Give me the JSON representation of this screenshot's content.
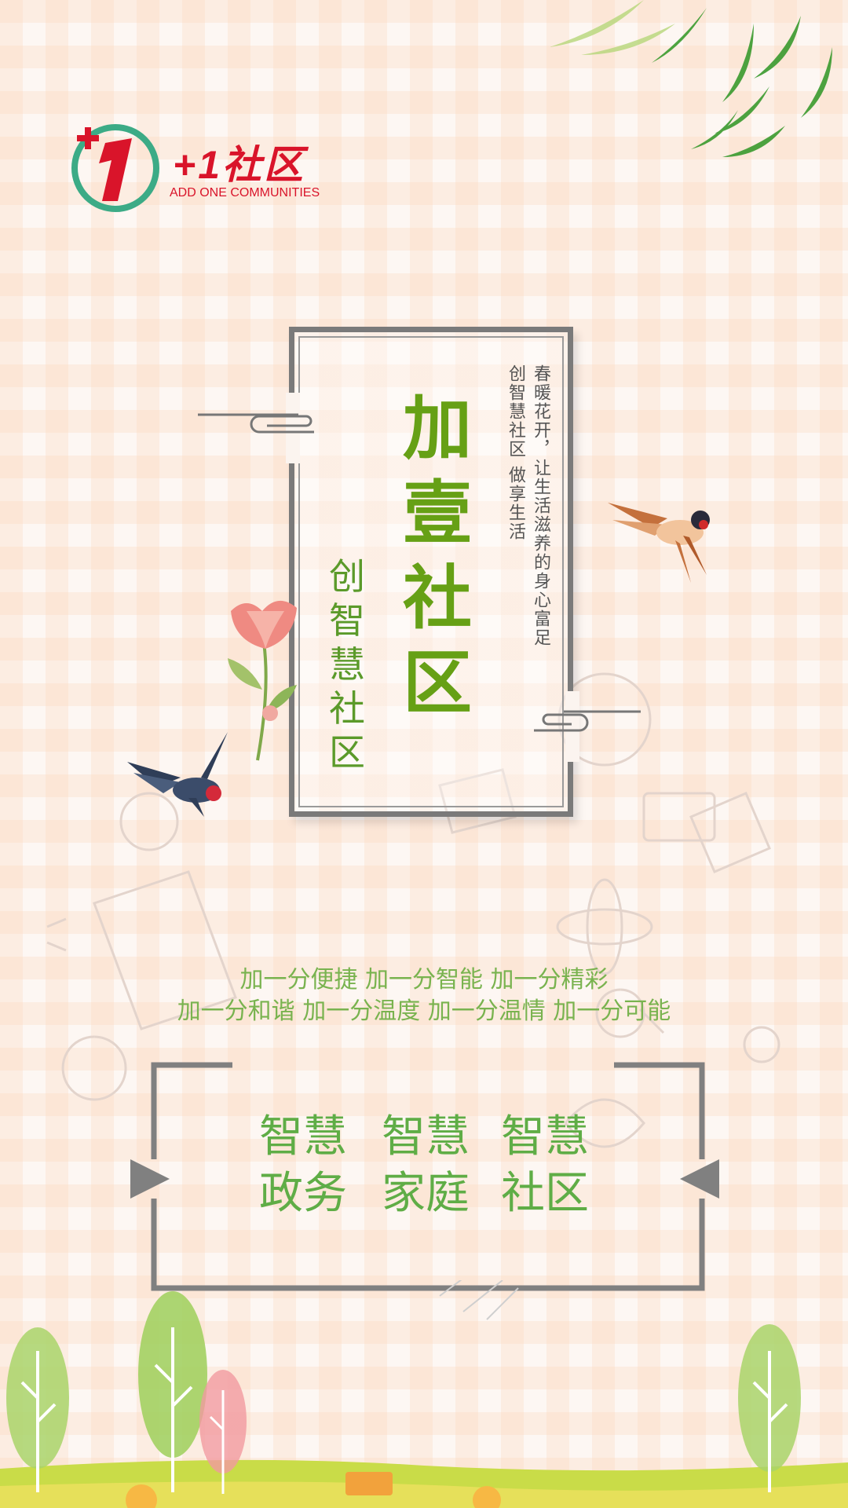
{
  "logo": {
    "title": "+1社区",
    "subtitle": "ADD ONE COMMUNITIES",
    "brand_color": "#d9142a",
    "mark_color": "#3cab86"
  },
  "poster": {
    "title_chars": [
      "加",
      "壹",
      "社",
      "区"
    ],
    "subtitle_chars": [
      "创",
      "智",
      "慧",
      "社",
      "区"
    ],
    "poem_lines": [
      "春暖花开，让生活滋养的身心富足",
      "创智慧社区 做享生活"
    ],
    "taglines": [
      "加一分便捷  加一分智能  加一分精彩",
      "加一分和谐  加一分温度 加一分温情 加一分可能"
    ],
    "smart_items": [
      {
        "top": "智慧",
        "bottom": "政务"
      },
      {
        "top": "智慧",
        "bottom": "家庭"
      },
      {
        "top": "智慧",
        "bottom": "社区"
      }
    ]
  },
  "colors": {
    "title_green": "#66a015",
    "smart_green": "#5fad46",
    "frame_gray": "#7a7a7a",
    "background": "#fdf7f3"
  }
}
